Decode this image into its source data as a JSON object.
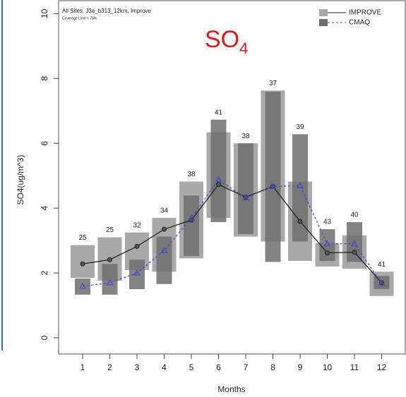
{
  "chart_data": {
    "type": "box-range",
    "title": {
      "main": "SO",
      "sub": "4"
    },
    "subtitle": "All Sites, J3a_b313_12km, Improve",
    "note": "Coverage Limit = 75%",
    "x_label": "Months",
    "y_label": "SO4(ug/m^3)",
    "categories": [
      "1",
      "2",
      "3",
      "4",
      "5",
      "6",
      "7",
      "8",
      "9",
      "10",
      "11",
      "12"
    ],
    "counts": [
      25,
      25,
      32,
      34,
      38,
      41,
      38,
      37,
      39,
      43,
      40,
      41
    ],
    "ylim": [
      -0.5,
      10.4
    ],
    "yticks": [
      0,
      2,
      4,
      6,
      8,
      10
    ],
    "series": [
      {
        "name": "IMPROVE",
        "color": "#a9a9a9",
        "line_color": "#222222",
        "values": [
          2.28,
          2.41,
          2.82,
          3.35,
          3.63,
          4.73,
          4.34,
          4.67,
          3.59,
          2.62,
          2.64,
          1.7
        ],
        "low": [
          1.85,
          1.76,
          2.09,
          2.04,
          2.45,
          3.7,
          3.12,
          2.97,
          2.37,
          2.2,
          2.13,
          1.29
        ],
        "high": [
          2.86,
          3.1,
          3.25,
          3.7,
          4.82,
          6.34,
          6.0,
          7.63,
          4.82,
          2.92,
          3.16,
          2.04
        ]
      },
      {
        "name": "CMAQ",
        "color": "#6e6e6e",
        "line_color": "#4a4ac8",
        "values": [
          1.59,
          1.7,
          2.0,
          2.69,
          3.7,
          4.88,
          4.32,
          4.67,
          4.69,
          2.9,
          2.9,
          1.68
        ],
        "low": [
          1.33,
          1.33,
          1.5,
          1.66,
          2.52,
          3.57,
          3.2,
          2.34,
          2.97,
          2.37,
          2.34,
          1.5
        ],
        "high": [
          1.83,
          2.28,
          2.41,
          3.12,
          4.39,
          6.73,
          6.0,
          7.59,
          6.28,
          3.35,
          3.57,
          1.91
        ]
      }
    ]
  }
}
